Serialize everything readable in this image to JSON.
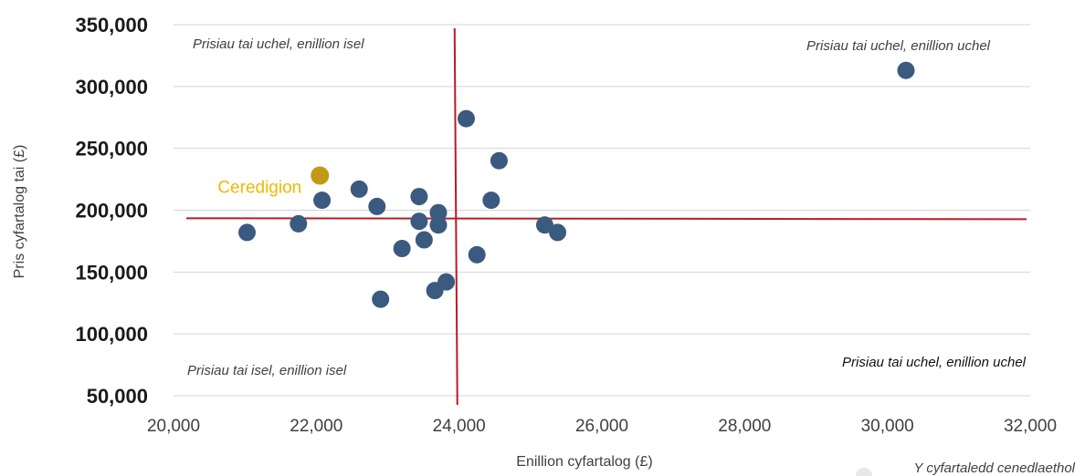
{
  "chart_data": {
    "type": "scatter",
    "xlabel": "Enillion cyfartalog (£)",
    "ylabel": "Pris cyfartalog tai  (£)",
    "xlim": [
      20000,
      32000
    ],
    "ylim": [
      50000,
      350000
    ],
    "x_ticks": [
      "20,000",
      "22,000",
      "24,000",
      "26,000",
      "28,000",
      "30,000",
      "32,000"
    ],
    "y_ticks": [
      "50,000",
      "100,000",
      "150,000",
      "200,000",
      "250,000",
      "300,000",
      "350,000"
    ],
    "grid": "horizontal",
    "colors": {
      "points": "#3a5a80",
      "highlight": "#c19a16",
      "highlight_label": "#f0b800",
      "reference_lines": "#b81c22",
      "grid": "#d4d4d4"
    },
    "points": [
      {
        "x": 21030,
        "y": 182000
      },
      {
        "x": 21750,
        "y": 189000
      },
      {
        "x": 22080,
        "y": 208000
      },
      {
        "x": 22600,
        "y": 217000
      },
      {
        "x": 22850,
        "y": 203000
      },
      {
        "x": 22900,
        "y": 128000
      },
      {
        "x": 23200,
        "y": 169000
      },
      {
        "x": 23440,
        "y": 211000
      },
      {
        "x": 23440,
        "y": 191000
      },
      {
        "x": 23510,
        "y": 176000
      },
      {
        "x": 23660,
        "y": 135000
      },
      {
        "x": 23710,
        "y": 198000
      },
      {
        "x": 23710,
        "y": 188000
      },
      {
        "x": 23820,
        "y": 142000
      },
      {
        "x": 24100,
        "y": 274000
      },
      {
        "x": 24250,
        "y": 164000
      },
      {
        "x": 24450,
        "y": 208000
      },
      {
        "x": 24560,
        "y": 240000
      },
      {
        "x": 25200,
        "y": 188000
      },
      {
        "x": 25380,
        "y": 182000
      },
      {
        "x": 30260,
        "y": 313000
      }
    ],
    "highlight": {
      "label": "Ceredigion",
      "x": 22050,
      "y": 228000
    },
    "reference_lines": {
      "x": 23950,
      "y": 193500
    },
    "quadrant_labels": {
      "top_left": "Prisiau tai uchel, enillion isel",
      "top_right": "Prisiau tai uchel, enillion uchel",
      "bottom_left": "Prisiau tai isel, enillion isel",
      "bottom_right": "Prisiau tai uchel, enillion uchel"
    },
    "legend": {
      "entry": "Y cyfartaledd cenedlaethol",
      "placement": "bottom-right"
    }
  }
}
